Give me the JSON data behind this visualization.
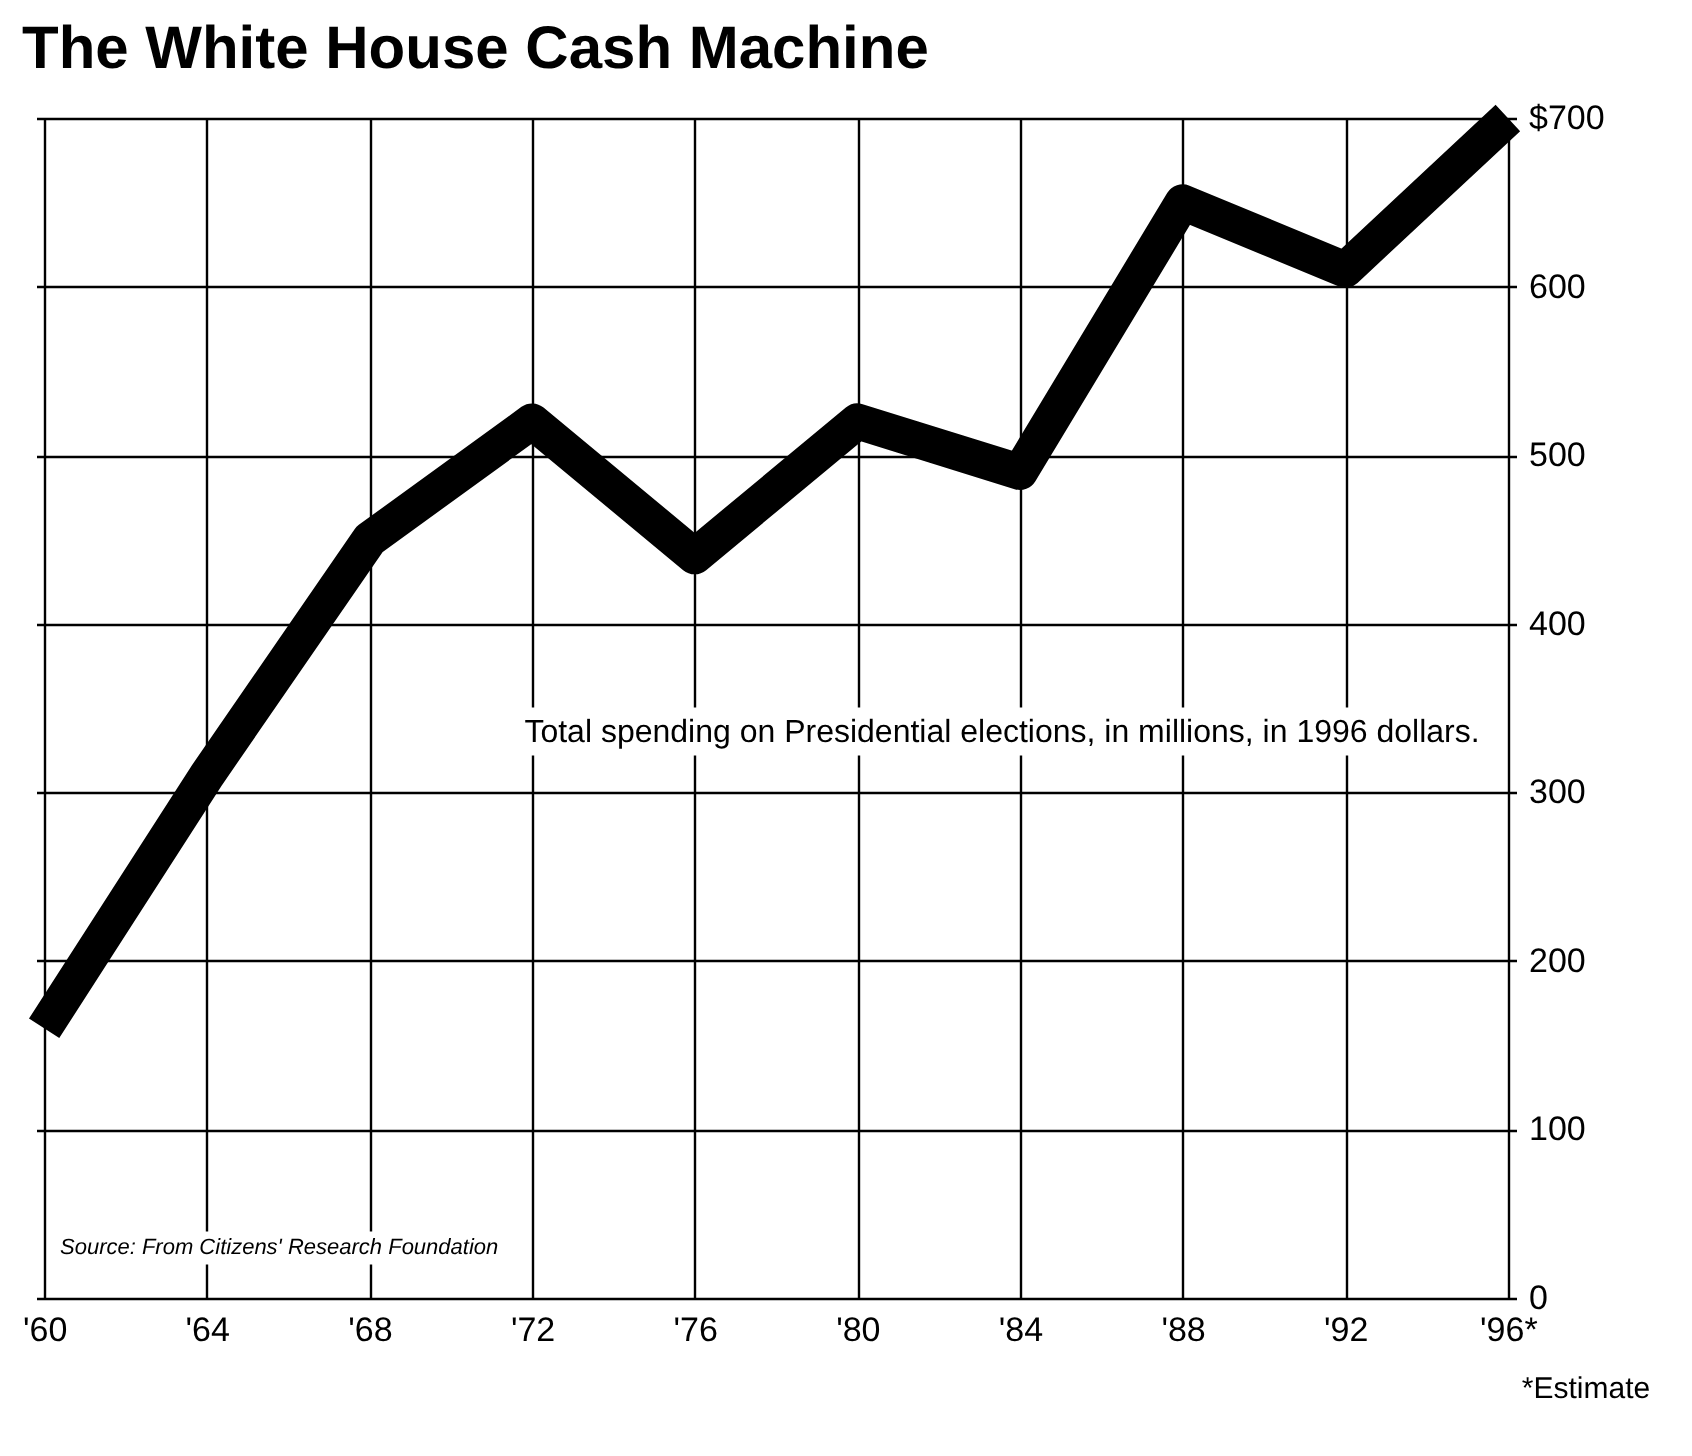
{
  "chart_data": {
    "type": "line",
    "title": "The White House Cash Machine",
    "categories": [
      "'60",
      "'64",
      "'68",
      "'72",
      "'76",
      "'80",
      "'84",
      "'88",
      "'92",
      "'96*"
    ],
    "series": [
      {
        "color": "#000000",
        "values": [
          160,
          310,
          450,
          520,
          440,
          520,
          490,
          650,
          610,
          700
        ]
      }
    ],
    "ylim": [
      0,
      700
    ],
    "yticks": [
      0,
      100,
      200,
      300,
      400,
      500,
      600,
      {
        "value": 700,
        "label": "$700"
      }
    ],
    "grid": true,
    "marker": "none",
    "line_style": "solid",
    "annotations": [
      "Total spending on Presidential elections, in millions, in 1996 dollars.",
      "Source: From Citizens' Research Foundation",
      "*Estimate"
    ]
  }
}
